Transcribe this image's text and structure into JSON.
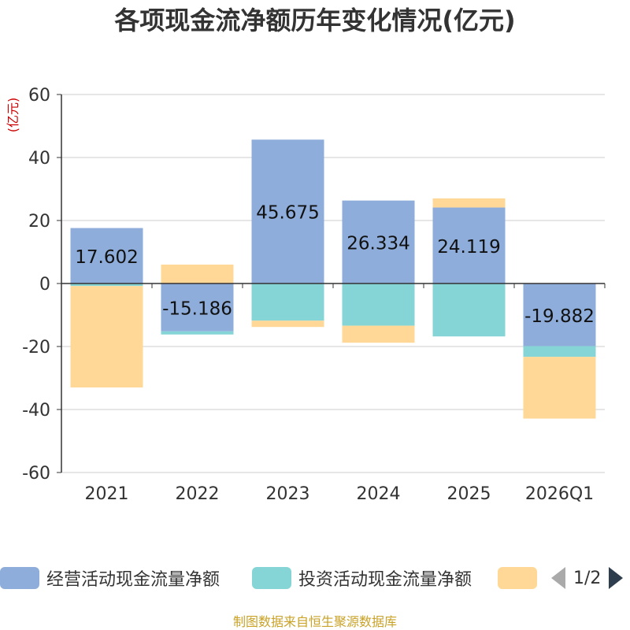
{
  "chart_data": {
    "type": "bar",
    "stacked": true,
    "title": "各项现金流净额历年变化情况(亿元)",
    "ylabel": "(亿元)",
    "xlabel": "",
    "categories": [
      "2021",
      "2022",
      "2023",
      "2024",
      "2025",
      "2026Q1"
    ],
    "ylim": [
      -60,
      60
    ],
    "yticks": [
      60,
      40,
      20,
      0,
      -20,
      -40,
      -60
    ],
    "grid": true,
    "series": [
      {
        "name": "经营活动现金流量净额",
        "color": "#8eaddb",
        "values": [
          17.602,
          -15.186,
          45.675,
          26.334,
          24.119,
          -19.882
        ],
        "labels": [
          "17.602",
          "-15.186",
          "45.675",
          "26.334",
          "24.119",
          "-19.882"
        ]
      },
      {
        "name": "投资活动现金流量净额",
        "color": "#86d5d6",
        "values": [
          -0.8,
          -1.0,
          -11.8,
          -13.4,
          -16.8,
          -3.4
        ]
      },
      {
        "name": "",
        "color": "#ffd897",
        "values": [
          -32.2,
          6.0,
          -2.0,
          -5.4,
          2.9,
          -19.6
        ]
      }
    ]
  },
  "legend": {
    "items": [
      {
        "label": "经营活动现金流量净额",
        "color": "#8eaddb"
      },
      {
        "label": "投资活动现金流量净额",
        "color": "#86d5d6"
      },
      {
        "label": "",
        "color": "#ffd897"
      }
    ],
    "page": "1/2",
    "prev_icon": "triangle-left-icon",
    "next_icon": "triangle-right-icon"
  },
  "footer": {
    "source": "制图数据来自恒生聚源数据库"
  },
  "colors": {
    "axis": "#333333",
    "grid": "#cccccc",
    "ylabel": "#cc0000",
    "footer": "#c9a227"
  }
}
